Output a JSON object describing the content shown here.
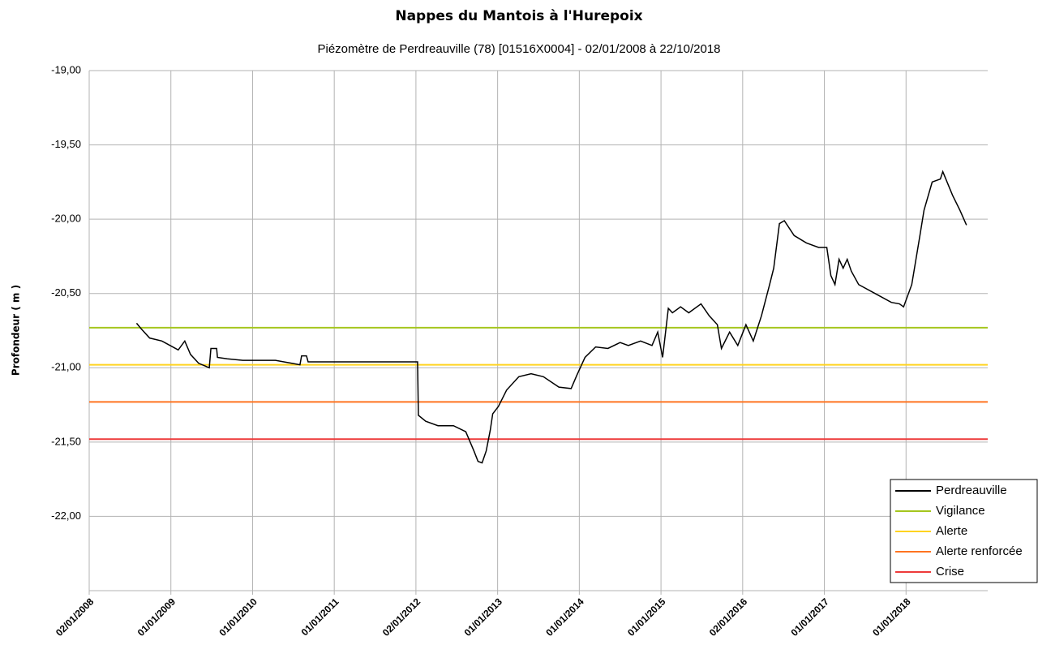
{
  "chart_data": {
    "type": "line",
    "title": "Nappes du Mantois à l'Hurepoix",
    "subtitle": "Piézomètre de Perdreauville (78) [01516X0004] - 02/01/2008 à 22/10/2018",
    "y_label": "Profondeur ( m )",
    "xlim": [
      2008,
      2019
    ],
    "xticks": [
      {
        "value": 2008,
        "label": "02/01/2008"
      },
      {
        "value": 2009,
        "label": "01/01/2009"
      },
      {
        "value": 2010,
        "label": "01/01/2010"
      },
      {
        "value": 2011,
        "label": "01/01/2011"
      },
      {
        "value": 2012,
        "label": "02/01/2012"
      },
      {
        "value": 2013,
        "label": "01/01/2013"
      },
      {
        "value": 2014,
        "label": "01/01/2014"
      },
      {
        "value": 2015,
        "label": "01/01/2015"
      },
      {
        "value": 2016,
        "label": "02/01/2016"
      },
      {
        "value": 2017,
        "label": "01/01/2017"
      },
      {
        "value": 2018,
        "label": "01/01/2018"
      }
    ],
    "ylim": [
      -22.5,
      -19
    ],
    "yticks": [
      {
        "value": -19,
        "label": "-19,00"
      },
      {
        "value": -19.5,
        "label": "-19,50"
      },
      {
        "value": -20,
        "label": "-20,00"
      },
      {
        "value": -20.5,
        "label": "-20,50"
      },
      {
        "value": -21,
        "label": "-21,00"
      },
      {
        "value": -21.5,
        "label": "-21,50"
      },
      {
        "value": -22,
        "label": "-22,00"
      }
    ],
    "grid": true,
    "legend": "bottom-right",
    "series": [
      {
        "name": "Perdreauville",
        "color": "#000000",
        "x": [
          2008.58,
          2008.64,
          2008.74,
          2008.89,
          2008.99,
          2009.09,
          2009.17,
          2009.24,
          2009.34,
          2009.47,
          2009.49,
          2009.56,
          2009.57,
          2009.69,
          2009.88,
          2010.28,
          2010.48,
          2010.58,
          2010.6,
          2010.66,
          2010.68,
          2011.37,
          2012.02,
          2012.03,
          2012.12,
          2012.27,
          2012.46,
          2012.61,
          2012.71,
          2012.76,
          2012.81,
          2012.86,
          2012.91,
          2012.94,
          2013.01,
          2013.11,
          2013.26,
          2013.41,
          2013.56,
          2013.75,
          2013.9,
          2013.97,
          2014.07,
          2014.2,
          2014.35,
          2014.5,
          2014.6,
          2014.75,
          2014.89,
          2014.96,
          2015.02,
          2015.09,
          2015.14,
          2015.24,
          2015.34,
          2015.49,
          2015.59,
          2015.69,
          2015.74,
          2015.84,
          2015.94,
          2016.04,
          2016.13,
          2016.23,
          2016.33,
          2016.38,
          2016.45,
          2016.51,
          2016.63,
          2016.78,
          2016.93,
          2017.03,
          2017.08,
          2017.13,
          2017.18,
          2017.23,
          2017.28,
          2017.33,
          2017.42,
          2017.62,
          2017.82,
          2017.92,
          2017.97,
          2018.07,
          2018.17,
          2018.22,
          2018.32,
          2018.42,
          2018.45,
          2018.57,
          2018.66,
          2018.74
        ],
        "values": [
          -20.7,
          -20.74,
          -20.8,
          -20.82,
          -20.85,
          -20.88,
          -20.82,
          -20.91,
          -20.97,
          -21.0,
          -20.87,
          -20.87,
          -20.93,
          -20.94,
          -20.95,
          -20.95,
          -20.97,
          -20.98,
          -20.92,
          -20.92,
          -20.96,
          -20.96,
          -20.96,
          -21.32,
          -21.36,
          -21.39,
          -21.39,
          -21.43,
          -21.56,
          -21.63,
          -21.64,
          -21.56,
          -21.42,
          -21.31,
          -21.26,
          -21.15,
          -21.06,
          -21.04,
          -21.06,
          -21.13,
          -21.14,
          -21.05,
          -20.93,
          -20.86,
          -20.87,
          -20.83,
          -20.85,
          -20.82,
          -20.85,
          -20.76,
          -20.93,
          -20.6,
          -20.63,
          -20.59,
          -20.63,
          -20.57,
          -20.65,
          -20.71,
          -20.87,
          -20.76,
          -20.85,
          -20.71,
          -20.82,
          -20.65,
          -20.44,
          -20.33,
          -20.03,
          -20.01,
          -20.11,
          -20.16,
          -20.19,
          -20.19,
          -20.38,
          -20.44,
          -20.27,
          -20.33,
          -20.27,
          -20.35,
          -20.44,
          -20.5,
          -20.56,
          -20.57,
          -20.59,
          -20.44,
          -20.11,
          -19.94,
          -19.75,
          -19.73,
          -19.68,
          -19.84,
          -19.94,
          -20.04
        ]
      },
      {
        "name": "Vigilance",
        "color": "#a5c61e",
        "x": [
          2008,
          2019
        ],
        "values": [
          -20.73,
          -20.73
        ]
      },
      {
        "name": "Alerte",
        "color": "#ffd320",
        "x": [
          2008,
          2019
        ],
        "values": [
          -20.98,
          -20.98
        ]
      },
      {
        "name": "Alerte renforcée",
        "color": "#ff7420",
        "x": [
          2008,
          2019
        ],
        "values": [
          -21.23,
          -21.23
        ]
      },
      {
        "name": "Crise",
        "color": "#ee3a3a",
        "x": [
          2008,
          2019
        ],
        "values": [
          -21.48,
          -21.48
        ]
      }
    ]
  }
}
